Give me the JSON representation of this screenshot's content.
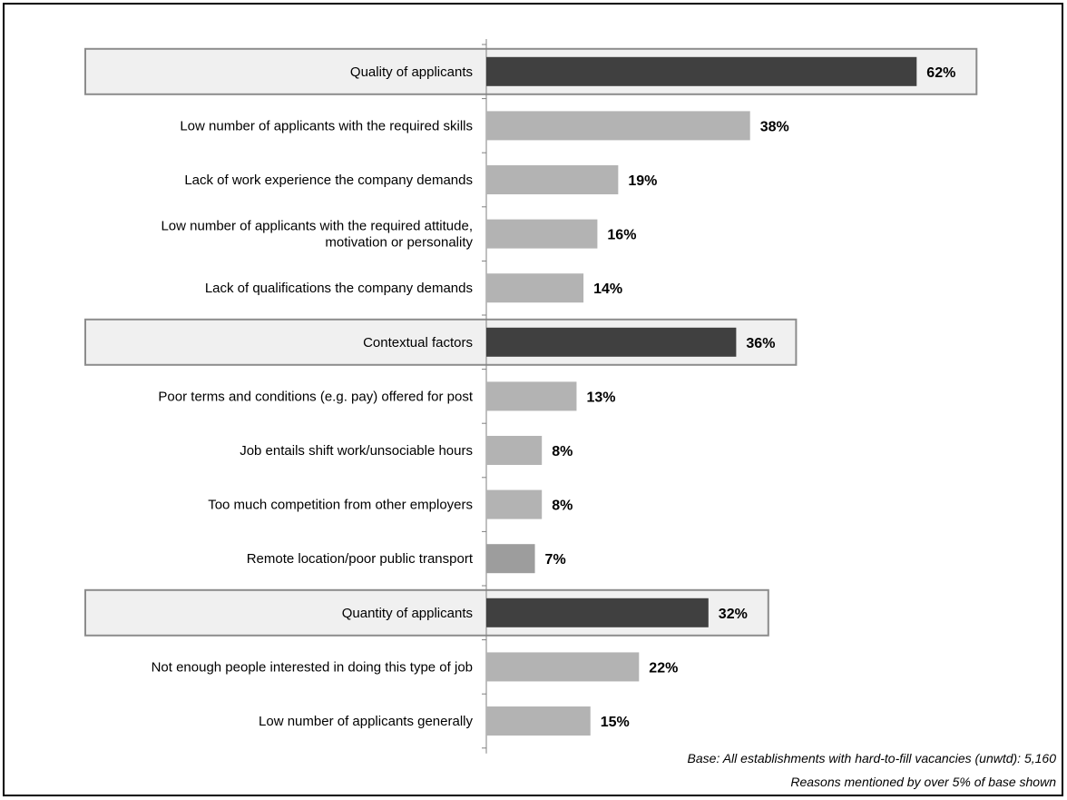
{
  "chart_data": {
    "type": "bar",
    "orientation": "horizontal",
    "categories": [
      "Quality of applicants",
      "Low number of applicants with the required skills",
      "Lack of work experience the company demands",
      "Low number of applicants with the required attitude, motivation or personality",
      "Lack of qualifications the company demands",
      "Contextual factors",
      "Poor terms and conditions (e.g. pay) offered for post",
      "Job entails shift work/unsociable hours",
      "Too much competition from other employers",
      "Remote location/poor public transport",
      "Quantity of applicants",
      "Not enough people interested in doing this type of job",
      "Low number of applicants generally"
    ],
    "label_lines": [
      [
        "Quality of applicants"
      ],
      [
        "Low number of applicants with the required skills"
      ],
      [
        "Lack of work experience the company demands"
      ],
      [
        "Low number of applicants with the required attitude,",
        "motivation or personality"
      ],
      [
        "Lack of qualifications the company demands"
      ],
      [
        "Contextual factors"
      ],
      [
        "Poor terms and conditions (e.g. pay) offered for post"
      ],
      [
        "Job entails shift work/unsociable hours"
      ],
      [
        "Too much competition from other employers"
      ],
      [
        "Remote location/poor public transport"
      ],
      [
        "Quantity of applicants"
      ],
      [
        "Not enough people interested in doing this type of job"
      ],
      [
        "Low number of applicants generally"
      ]
    ],
    "values": [
      62,
      38,
      19,
      16,
      14,
      36,
      13,
      8,
      8,
      7,
      32,
      22,
      15
    ],
    "value_labels": [
      "62%",
      "38%",
      "19%",
      "16%",
      "14%",
      "36%",
      "13%",
      "8%",
      "8%",
      "7%",
      "32%",
      "22%",
      "15%"
    ],
    "group_headers": [
      0,
      5,
      10
    ],
    "xlim": [
      0,
      70
    ],
    "grid": false,
    "colors": {
      "header_bar": "#404040",
      "item_bar": "#b3b3b3",
      "item_bar_alt": "#9d9d9d",
      "header_box_fill": "#f0f0f0",
      "header_box_border": "#8c8c8c",
      "axis": "#808080"
    },
    "alt_color_index": [
      9
    ]
  },
  "notes": {
    "base": "Base: All establishments with hard-to-fill vacancies (unwtd): 5,160",
    "reasons": "Reasons mentioned by over 5% of base shown"
  }
}
